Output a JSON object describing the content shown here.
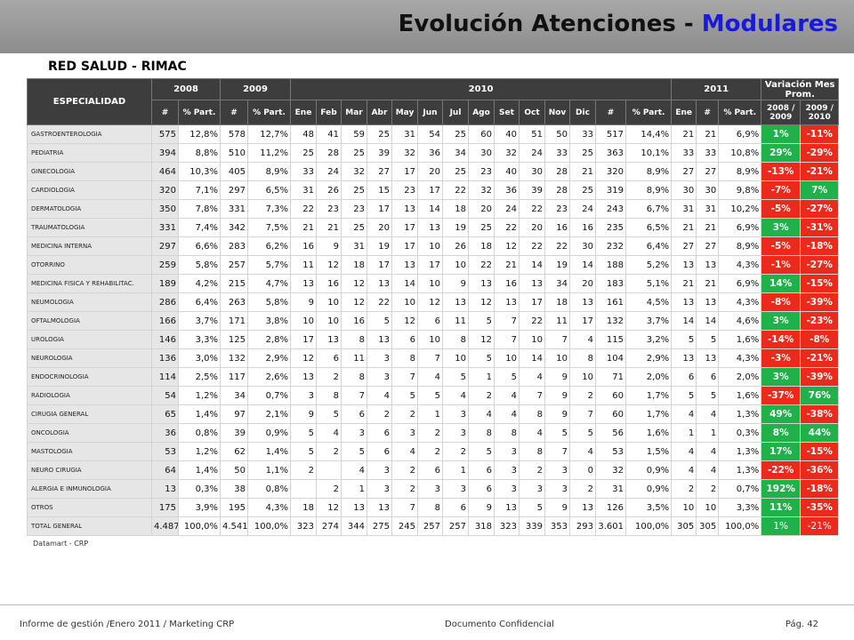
{
  "header": {
    "title_main": "Evolución Atenciones - ",
    "title_highlight": "Modulares"
  },
  "subtitle": "RED SALUD - RIMAC",
  "table": {
    "groups": [
      "ESPECIALIDAD",
      "2008",
      "2009",
      "2010",
      "2011",
      "Variación Mes Prom."
    ],
    "subheaders": [
      "#",
      "% Part.",
      "#",
      "% Part.",
      "Ene",
      "Feb",
      "Mar",
      "Abr",
      "May",
      "Jun",
      "Jul",
      "Ago",
      "Set",
      "Oct",
      "Nov",
      "Dic",
      "#",
      "% Part.",
      "Ene",
      "#",
      "% Part.",
      "2008 / 2009",
      "2009 / 2010"
    ],
    "rows": [
      [
        "GASTROENTEROLOGIA",
        "575",
        "12,8%",
        "578",
        "12,7%",
        "48",
        "41",
        "59",
        "25",
        "31",
        "54",
        "25",
        "60",
        "40",
        "51",
        "50",
        "33",
        "517",
        "14,4%",
        "21",
        "21",
        "6,9%",
        "1%",
        "-11%"
      ],
      [
        "PEDIATRIA",
        "394",
        "8,8%",
        "510",
        "11,2%",
        "25",
        "28",
        "25",
        "39",
        "32",
        "36",
        "34",
        "30",
        "32",
        "24",
        "33",
        "25",
        "363",
        "10,1%",
        "33",
        "33",
        "10,8%",
        "29%",
        "-29%"
      ],
      [
        "GINECOLOGIA",
        "464",
        "10,3%",
        "405",
        "8,9%",
        "33",
        "24",
        "32",
        "27",
        "17",
        "20",
        "25",
        "23",
        "40",
        "30",
        "28",
        "21",
        "320",
        "8,9%",
        "27",
        "27",
        "8,9%",
        "-13%",
        "-21%"
      ],
      [
        "CARDIOLOGIA",
        "320",
        "7,1%",
        "297",
        "6,5%",
        "31",
        "26",
        "25",
        "15",
        "23",
        "17",
        "22",
        "32",
        "36",
        "39",
        "28",
        "25",
        "319",
        "8,9%",
        "30",
        "30",
        "9,8%",
        "-7%",
        "7%"
      ],
      [
        "DERMATOLOGIA",
        "350",
        "7,8%",
        "331",
        "7,3%",
        "22",
        "23",
        "23",
        "17",
        "13",
        "14",
        "18",
        "20",
        "24",
        "22",
        "23",
        "24",
        "243",
        "6,7%",
        "31",
        "31",
        "10,2%",
        "-5%",
        "-27%"
      ],
      [
        "TRAUMATOLOGIA",
        "331",
        "7,4%",
        "342",
        "7,5%",
        "21",
        "21",
        "25",
        "20",
        "17",
        "13",
        "19",
        "25",
        "22",
        "20",
        "16",
        "16",
        "235",
        "6,5%",
        "21",
        "21",
        "6,9%",
        "3%",
        "-31%"
      ],
      [
        "MEDICINA INTERNA",
        "297",
        "6,6%",
        "283",
        "6,2%",
        "16",
        "9",
        "31",
        "19",
        "17",
        "10",
        "26",
        "18",
        "12",
        "22",
        "22",
        "30",
        "232",
        "6,4%",
        "27",
        "27",
        "8,9%",
        "-5%",
        "-18%"
      ],
      [
        "OTORRINO",
        "259",
        "5,8%",
        "257",
        "5,7%",
        "11",
        "12",
        "18",
        "17",
        "13",
        "17",
        "10",
        "22",
        "21",
        "14",
        "19",
        "14",
        "188",
        "5,2%",
        "13",
        "13",
        "4,3%",
        "-1%",
        "-27%"
      ],
      [
        "MEDICINA FISICA Y REHABILITAC.",
        "189",
        "4,2%",
        "215",
        "4,7%",
        "13",
        "16",
        "12",
        "13",
        "14",
        "10",
        "9",
        "13",
        "16",
        "13",
        "34",
        "20",
        "183",
        "5,1%",
        "21",
        "21",
        "6,9%",
        "14%",
        "-15%"
      ],
      [
        "NEUMOLOGIA",
        "286",
        "6,4%",
        "263",
        "5,8%",
        "9",
        "10",
        "12",
        "22",
        "10",
        "12",
        "13",
        "12",
        "13",
        "17",
        "18",
        "13",
        "161",
        "4,5%",
        "13",
        "13",
        "4,3%",
        "-8%",
        "-39%"
      ],
      [
        "OFTALMOLOGIA",
        "166",
        "3,7%",
        "171",
        "3,8%",
        "10",
        "10",
        "16",
        "5",
        "12",
        "6",
        "11",
        "5",
        "7",
        "22",
        "11",
        "17",
        "132",
        "3,7%",
        "14",
        "14",
        "4,6%",
        "3%",
        "-23%"
      ],
      [
        "UROLOGIA",
        "146",
        "3,3%",
        "125",
        "2,8%",
        "17",
        "13",
        "8",
        "13",
        "6",
        "10",
        "8",
        "12",
        "7",
        "10",
        "7",
        "4",
        "115",
        "3,2%",
        "5",
        "5",
        "1,6%",
        "-14%",
        "-8%"
      ],
      [
        "NEUROLOGIA",
        "136",
        "3,0%",
        "132",
        "2,9%",
        "12",
        "6",
        "11",
        "3",
        "8",
        "7",
        "10",
        "5",
        "10",
        "14",
        "10",
        "8",
        "104",
        "2,9%",
        "13",
        "13",
        "4,3%",
        "-3%",
        "-21%"
      ],
      [
        "ENDOCRINOLOGIA",
        "114",
        "2,5%",
        "117",
        "2,6%",
        "13",
        "2",
        "8",
        "3",
        "7",
        "4",
        "5",
        "1",
        "5",
        "4",
        "9",
        "10",
        "71",
        "2,0%",
        "6",
        "6",
        "2,0%",
        "3%",
        "-39%"
      ],
      [
        "RADIOLOGIA",
        "54",
        "1,2%",
        "34",
        "0,7%",
        "3",
        "8",
        "7",
        "4",
        "5",
        "5",
        "4",
        "2",
        "4",
        "7",
        "9",
        "2",
        "60",
        "1,7%",
        "5",
        "5",
        "1,6%",
        "-37%",
        "76%"
      ],
      [
        "CIRUGIA GENERAL",
        "65",
        "1,4%",
        "97",
        "2,1%",
        "9",
        "5",
        "6",
        "2",
        "2",
        "1",
        "3",
        "4",
        "4",
        "8",
        "9",
        "7",
        "60",
        "1,7%",
        "4",
        "4",
        "1,3%",
        "49%",
        "-38%"
      ],
      [
        "ONCOLOGIA",
        "36",
        "0,8%",
        "39",
        "0,9%",
        "5",
        "4",
        "3",
        "6",
        "3",
        "2",
        "3",
        "8",
        "8",
        "4",
        "5",
        "5",
        "56",
        "1,6%",
        "1",
        "1",
        "0,3%",
        "8%",
        "44%"
      ],
      [
        "MASTOLOGIA",
        "53",
        "1,2%",
        "62",
        "1,4%",
        "5",
        "2",
        "5",
        "6",
        "4",
        "2",
        "2",
        "5",
        "3",
        "8",
        "7",
        "4",
        "53",
        "1,5%",
        "4",
        "4",
        "1,3%",
        "17%",
        "-15%"
      ],
      [
        "NEURO CIRUGIA",
        "64",
        "1,4%",
        "50",
        "1,1%",
        "2",
        null,
        "4",
        "3",
        "2",
        "6",
        "1",
        "6",
        "3",
        "2",
        "3",
        "0",
        "32",
        "0,9%",
        "4",
        "4",
        "1,3%",
        "-22%",
        "-36%"
      ],
      [
        "ALERGIA E INMUNOLOGIA",
        "13",
        "0,3%",
        "38",
        "0,8%",
        null,
        "2",
        "1",
        "3",
        "2",
        "3",
        "3",
        "6",
        "3",
        "3",
        "3",
        "2",
        "31",
        "0,9%",
        "2",
        "2",
        "0,7%",
        "192%",
        "-18%"
      ],
      [
        "OTROS",
        "175",
        "3,9%",
        "195",
        "4,3%",
        "18",
        "12",
        "13",
        "13",
        "7",
        "8",
        "6",
        "9",
        "13",
        "5",
        "9",
        "13",
        "126",
        "3,5%",
        "10",
        "10",
        "3,3%",
        "11%",
        "-35%"
      ],
      [
        "TOTAL GENERAL",
        "4.487",
        "100,0%",
        "4.541",
        "100,0%",
        "323",
        "274",
        "344",
        "275",
        "245",
        "257",
        "257",
        "318",
        "323",
        "339",
        "353",
        "293",
        "3.601",
        "100,0%",
        "305",
        "305",
        "100,0%",
        "1%",
        "-21%"
      ]
    ]
  },
  "source": "Datamart - CRP",
  "footer": {
    "left": "Informe de gestión /Enero 2011 / Marketing CRP",
    "center": "Documento Confidencial",
    "right": "Pág. 42"
  }
}
